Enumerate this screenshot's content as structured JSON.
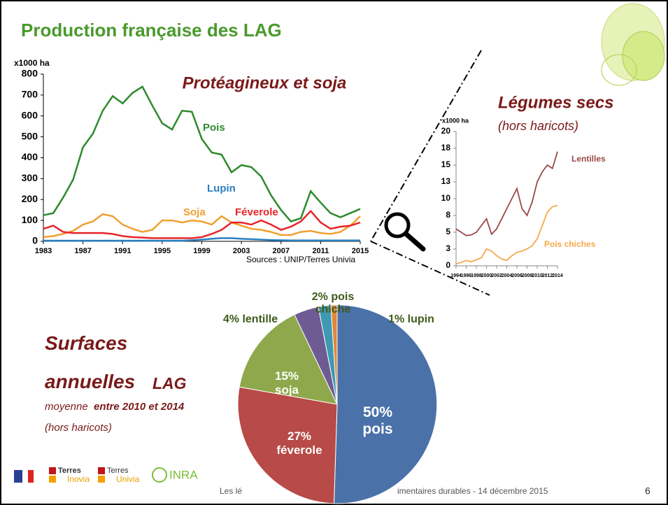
{
  "slide": {
    "title": "Production française des LAG",
    "footer_left": "Les lé",
    "footer_right": "imentaires durables - 14 décembre 2015",
    "page_number": "6",
    "logos": [
      "Terres",
      "Inovia",
      "Terres",
      "Univia",
      "INRA"
    ]
  },
  "chart_data": [
    {
      "type": "line",
      "title": "Protéagineux et soja",
      "y_label": "x1000 ha",
      "source": "Sources : UNIP/Terres Univia",
      "x": [
        1983,
        1984,
        1985,
        1986,
        1987,
        1988,
        1989,
        1990,
        1991,
        1992,
        1993,
        1994,
        1995,
        1996,
        1997,
        1998,
        1999,
        2000,
        2001,
        2002,
        2003,
        2004,
        2005,
        2006,
        2007,
        2008,
        2009,
        2010,
        2011,
        2012,
        2013,
        2014,
        2015
      ],
      "xlim": [
        1983,
        2015
      ],
      "xticks": [
        1983,
        1987,
        1991,
        1995,
        1999,
        2003,
        2007,
        2011,
        2015
      ],
      "ylim": [
        0,
        800
      ],
      "yticks": [
        0,
        100,
        200,
        300,
        400,
        500,
        600,
        700,
        800
      ],
      "series": [
        {
          "name": "Pois",
          "color": "#2e8b2e",
          "values": [
            125,
            135,
            210,
            295,
            450,
            515,
            625,
            695,
            660,
            710,
            740,
            650,
            565,
            535,
            625,
            620,
            490,
            425,
            415,
            330,
            365,
            355,
            310,
            220,
            150,
            95,
            110,
            240,
            185,
            135,
            115,
            135,
            155
          ]
        },
        {
          "name": "Lupin",
          "color": "#2a7fc0",
          "values": [
            3,
            3,
            3,
            3,
            3,
            3,
            3,
            3,
            3,
            3,
            3,
            3,
            3,
            3,
            3,
            5,
            8,
            12,
            15,
            15,
            12,
            10,
            8,
            6,
            5,
            4,
            4,
            4,
            4,
            4,
            4,
            4,
            4
          ]
        },
        {
          "name": "Soja",
          "color": "#f0a030",
          "values": [
            20,
            25,
            35,
            50,
            80,
            95,
            130,
            120,
            80,
            60,
            45,
            55,
            100,
            100,
            90,
            100,
            95,
            80,
            120,
            90,
            75,
            60,
            55,
            45,
            30,
            30,
            45,
            50,
            40,
            35,
            45,
            75,
            120
          ]
        },
        {
          "name": "Féverole",
          "color": "#e8252a",
          "values": [
            60,
            75,
            45,
            40,
            40,
            40,
            40,
            35,
            25,
            20,
            18,
            15,
            15,
            15,
            15,
            15,
            20,
            35,
            55,
            90,
            90,
            80,
            100,
            80,
            55,
            70,
            95,
            145,
            90,
            60,
            70,
            75,
            90
          ]
        }
      ]
    },
    {
      "type": "line",
      "title": "Légumes secs",
      "subtitle": "(hors haricots)",
      "y_label": "x1000 ha",
      "x": [
        1994,
        1995,
        1996,
        1997,
        1998,
        1999,
        2000,
        2001,
        2002,
        2003,
        2004,
        2005,
        2006,
        2007,
        2008,
        2009,
        2010,
        2011,
        2012,
        2013,
        2014
      ],
      "xlim": [
        1994,
        2014
      ],
      "xticks": [
        1994,
        1996,
        1998,
        2000,
        2002,
        2004,
        2006,
        2008,
        2010,
        2012,
        2014
      ],
      "ylim": [
        0,
        20
      ],
      "yticks": [
        0,
        {
          "value": 2.5,
          "label": "3"
        },
        5,
        {
          "value": 7.5,
          "label": "8"
        },
        10,
        {
          "value": 12.5,
          "label": "13"
        },
        15,
        {
          "value": 17.5,
          "label": "18"
        },
        20
      ],
      "series": [
        {
          "name": "Lentilles",
          "color": "#9b4a4a",
          "values": [
            5.5,
            5,
            4.5,
            4.6,
            5,
            6,
            7,
            4.7,
            5.5,
            7,
            8.5,
            10,
            11.5,
            8.5,
            7.5,
            9.5,
            12.5,
            14,
            15,
            14.5,
            17
          ]
        },
        {
          "name": "Pois chiches",
          "color": "#f5a84a",
          "values": [
            0.3,
            0.5,
            0.8,
            0.6,
            0.9,
            1.2,
            2.5,
            2.2,
            1.5,
            1,
            0.8,
            1.5,
            2,
            2.2,
            2.5,
            3,
            4,
            6,
            8,
            8.8,
            9
          ]
        }
      ]
    },
    {
      "type": "pie",
      "title_lines": [
        "Surfaces",
        "annuelles"
      ],
      "title_tag": "LAG",
      "subtitle_start": "moyenne",
      "subtitle_emph": "entre 2010 et 2014",
      "note": "(hors haricots)",
      "values": [
        50,
        27,
        15,
        4,
        2,
        1
      ],
      "value_labels": [
        "50% pois",
        "27% féverole",
        "15% soja",
        "4% lentille",
        "2% pois chiche",
        "1% lupin"
      ],
      "colors": [
        "#4a72a8",
        "#b84a47",
        "#8fa84c",
        "#6e5b93",
        "#3e99b3",
        "#e0873a"
      ]
    }
  ]
}
